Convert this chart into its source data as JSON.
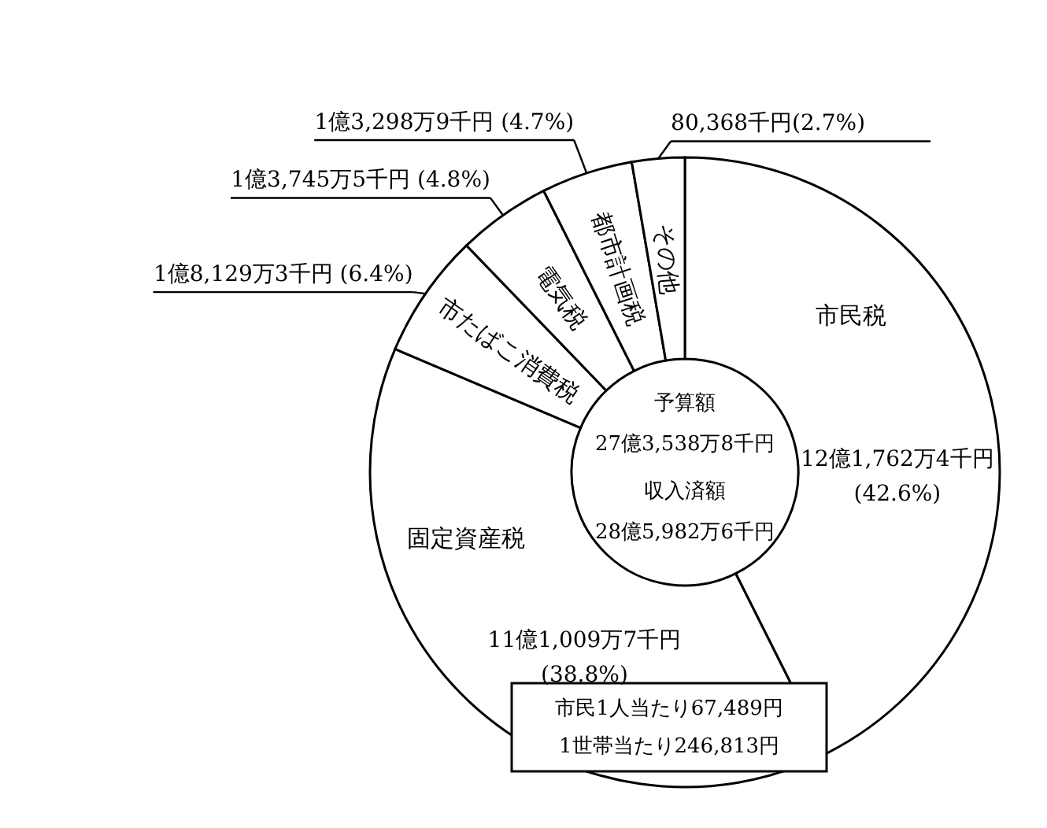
{
  "chart_data": {
    "type": "donut",
    "categories": [
      "市民税",
      "固定資産税",
      "市たばこ消費税",
      "電気税",
      "都市計画税",
      "その他"
    ],
    "values": [
      42.6,
      38.8,
      6.4,
      4.8,
      4.7,
      2.7
    ],
    "colors": [
      "#ffffff",
      "#ffffff",
      "#ffffff",
      "#ffffff",
      "#ffffff",
      "#ffffff"
    ],
    "value_labels": [
      "12億1,762万4千円 (42.6%)",
      "11億1,009万7千円 (38.8%)",
      "1億8,129万3千円 (6.4%)",
      "1億3,745万5千円 (4.8%)",
      "1億3,298万9千円 (4.7%)",
      "80,368千円(2.7%)"
    ],
    "annotations": [
      "予算額",
      "27億3,538万8千円",
      "収入済額",
      "28億5,982万6千円",
      "市民1人当たり67,489円",
      "1世帯当たり246,813円"
    ]
  }
}
